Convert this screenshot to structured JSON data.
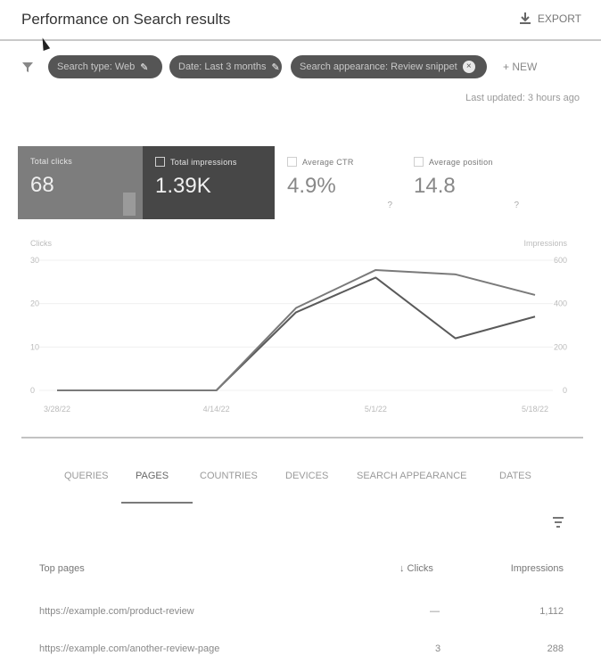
{
  "header": {
    "title": "Performance on Search results",
    "export_label": "EXPORT"
  },
  "filters": {
    "chips": [
      {
        "label": "Search type: Web",
        "action": "✎"
      },
      {
        "label": "Date: Last 3 months",
        "action": "✎"
      },
      {
        "label": "Search appearance: Review snippet",
        "action": "×"
      }
    ],
    "new_label": "+ NEW",
    "last_updated": "Last updated: 3 hours ago"
  },
  "metrics": [
    {
      "label": "Total clicks",
      "value": "68"
    },
    {
      "label": "Total impressions",
      "value": "1.39K"
    },
    {
      "label": "Average CTR",
      "value": "4.9%"
    },
    {
      "label": "Average position",
      "value": "14.8"
    }
  ],
  "chart_data": {
    "type": "line",
    "left_axis": {
      "label": "Clicks",
      "ticks": [
        "30",
        "20",
        "10",
        "0"
      ]
    },
    "right_axis": {
      "label": "Impressions",
      "ticks": [
        "600",
        "400",
        "200",
        "0"
      ]
    },
    "x_ticks": [
      "3/28/22",
      "4/14/22",
      "5/1/22",
      "5/18/22"
    ],
    "x_positions": [
      0,
      1,
      2,
      3,
      4,
      5,
      6
    ],
    "series": [
      {
        "name": "Clicks",
        "axis": "left",
        "color": "#5a5a5a",
        "values": [
          0,
          0,
          0,
          18,
          26,
          12,
          17
        ]
      },
      {
        "name": "Impressions",
        "axis": "right",
        "color": "#7a7a7a",
        "values": [
          0,
          0,
          0,
          380,
          555,
          535,
          440
        ]
      }
    ]
  },
  "tabs": [
    "QUERIES",
    "PAGES",
    "COUNTRIES",
    "DEVICES",
    "SEARCH APPEARANCE",
    "DATES"
  ],
  "active_tab": 1,
  "table": {
    "headers": {
      "col1": "Top pages",
      "col2": "↓ Clicks",
      "col3": "Impressions"
    },
    "rows": [
      {
        "page": "https://example.com/product-review",
        "clicks": "—",
        "impressions": "1,112"
      },
      {
        "page": "https://example.com/another-review-page",
        "clicks": "3",
        "impressions": "288"
      }
    ]
  }
}
